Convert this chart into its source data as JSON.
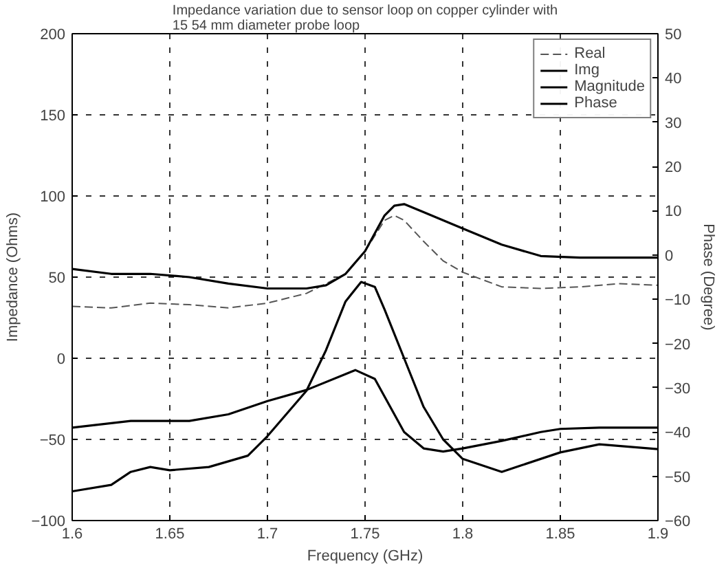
{
  "chart_data": {
    "type": "line",
    "title": "Impedance variation due to sensor loop on copper cylinder with\n15 54 mm diameter probe loop",
    "xlabel": "Frequency (GHz)",
    "ylabel": "Impedance (Ohms)",
    "y2label": "Phase (Degree)",
    "xlim": [
      1.6,
      1.9
    ],
    "xticks": [
      1.6,
      1.65,
      1.7,
      1.75,
      1.8,
      1.85,
      1.9
    ],
    "ylim": [
      -100,
      200
    ],
    "yticks": [
      -100,
      -50,
      0,
      50,
      100,
      150,
      200
    ],
    "y2lim": [
      -60,
      50
    ],
    "y2ticks": [
      -60,
      -50,
      -40,
      -30,
      -20,
      -10,
      0,
      10,
      20,
      30,
      40,
      50
    ],
    "grid": true,
    "legend": "top right",
    "series": [
      {
        "name": "Real",
        "color": "#555555",
        "line_style": "dashed",
        "x": [
          1.6,
          1.62,
          1.64,
          1.66,
          1.68,
          1.7,
          1.72,
          1.74,
          1.75,
          1.76,
          1.765,
          1.77,
          1.78,
          1.79,
          1.8,
          1.82,
          1.84,
          1.86,
          1.88,
          1.9
        ],
        "values": [
          32,
          31,
          34,
          33,
          31,
          34,
          40,
          52,
          66,
          85,
          88,
          85,
          72,
          60,
          53,
          44,
          43,
          44,
          46,
          45
        ]
      },
      {
        "name": "Img",
        "color": "#000000",
        "line_style": "solid",
        "x": [
          1.6,
          1.62,
          1.63,
          1.64,
          1.65,
          1.67,
          1.69,
          1.7,
          1.72,
          1.73,
          1.74,
          1.748,
          1.755,
          1.76,
          1.77,
          1.78,
          1.79,
          1.8,
          1.82,
          1.83,
          1.85,
          1.87,
          1.9
        ],
        "values": [
          -82,
          -78,
          -70,
          -67,
          -69,
          -67,
          -60,
          -48,
          -20,
          5,
          35,
          47,
          44,
          30,
          0,
          -30,
          -50,
          -62,
          -70,
          -66,
          -58,
          -53,
          -56
        ]
      },
      {
        "name": "Magnitude",
        "color": "#000000",
        "line_style": "solid",
        "x": [
          1.6,
          1.62,
          1.64,
          1.66,
          1.68,
          1.7,
          1.72,
          1.73,
          1.74,
          1.75,
          1.76,
          1.765,
          1.77,
          1.78,
          1.8,
          1.82,
          1.84,
          1.86,
          1.88,
          1.9
        ],
        "values": [
          55,
          52,
          52,
          50,
          46,
          43,
          43,
          45,
          52,
          66,
          88,
          94,
          95,
          90,
          80,
          70,
          63,
          62,
          62,
          62
        ]
      },
      {
        "name": "Phase",
        "color": "#000000",
        "line_style": "solid",
        "axis": "y2",
        "x": [
          1.6,
          1.63,
          1.66,
          1.68,
          1.7,
          1.72,
          1.745,
          1.755,
          1.77,
          1.78,
          1.79,
          1.8,
          1.82,
          1.84,
          1.85,
          1.87,
          1.9
        ],
        "values": [
          -39,
          -37.5,
          -37.5,
          -36,
          -33,
          -30.5,
          -26,
          -28,
          -40,
          -43.7,
          -44.4,
          -43.7,
          -42,
          -40,
          -39.3,
          -39,
          -39
        ]
      }
    ]
  }
}
